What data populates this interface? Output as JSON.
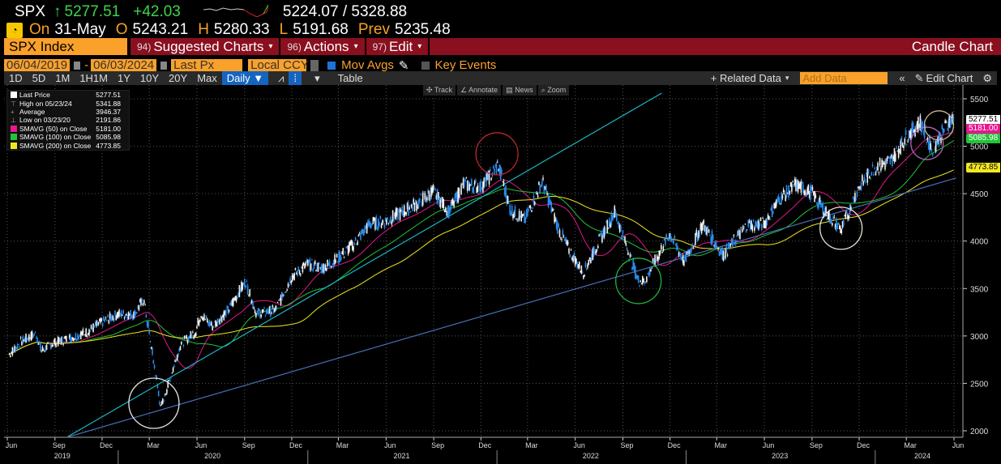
{
  "quote": {
    "ticker": "SPX",
    "arrow": "↑",
    "last": "5277.51",
    "change": "+42.03",
    "range": "5224.07 / 5328.88",
    "on_label": "On",
    "date": "31-May",
    "open_label": "O",
    "open": "5243.21",
    "high_label": "H",
    "high": "5280.33",
    "low_label": "L",
    "low": "5191.68",
    "prev_label": "Prev",
    "prev": "5235.48"
  },
  "menubar": {
    "security": "SPX Index",
    "menus": [
      {
        "num": "94)",
        "label": "Suggested Charts"
      },
      {
        "num": "96)",
        "label": "Actions"
      },
      {
        "num": "97)",
        "label": "Edit"
      }
    ],
    "chart_type": "Candle Chart"
  },
  "settings": {
    "start_date": "06/04/2019",
    "end_date": "06/03/2024",
    "field": "Last Px",
    "currency": "Local CCY",
    "mov_avgs": "Mov Avgs",
    "mov_avgs_checked": true,
    "key_events": "Key Events",
    "key_events_checked": false
  },
  "toolbar": {
    "ranges": [
      "1D",
      "5D",
      "1M",
      "1H1M",
      "1Y",
      "10Y",
      "20Y",
      "Max"
    ],
    "period": "Daily ▼",
    "table": "Table",
    "related": "+ Related Data",
    "add_data_placeholder": "Add Data",
    "edit_chart": "Edit Chart"
  },
  "chart_tools": [
    "Track",
    "Annotate",
    "News",
    "Zoom"
  ],
  "legend": [
    {
      "label": "Last Price",
      "value": "5277.51",
      "color": "#ffffff"
    },
    {
      "label": "High on 05/23/24",
      "value": "5341.88",
      "color": ""
    },
    {
      "label": "Average",
      "value": "3946.37",
      "color": ""
    },
    {
      "label": "Low on 03/23/20",
      "value": "2191.86",
      "color": ""
    },
    {
      "label": "SMAVG (50)  on Close",
      "value": "5181.00",
      "color": "#e6178f"
    },
    {
      "label": "SMAVG (100)  on Close",
      "value": "5085.98",
      "color": "#22c33a"
    },
    {
      "label": "SMAVG (200)  on Close",
      "value": "4773.85",
      "color": "#f2e81f"
    }
  ],
  "chart_data": {
    "type": "candlestick",
    "ylim": [
      1900,
      5600
    ],
    "yticks": [
      "2000",
      "2500",
      "3000",
      "3500",
      "4000",
      "4500",
      "5000",
      "5500"
    ],
    "xticks": [
      {
        "d": "2019-06-01",
        "l": "Jun"
      },
      {
        "d": "2019-09-01",
        "l": "Sep"
      },
      {
        "d": "2019-12-01",
        "l": "Dec"
      },
      {
        "d": "2020-03-01",
        "l": "Mar"
      },
      {
        "d": "2020-06-01",
        "l": "Jun"
      },
      {
        "d": "2020-09-01",
        "l": "Sep"
      },
      {
        "d": "2020-12-01",
        "l": "Dec"
      },
      {
        "d": "2021-03-01",
        "l": "Mar"
      },
      {
        "d": "2021-06-01",
        "l": "Jun"
      },
      {
        "d": "2021-09-01",
        "l": "Sep"
      },
      {
        "d": "2021-12-01",
        "l": "Dec"
      },
      {
        "d": "2022-03-01",
        "l": "Mar"
      },
      {
        "d": "2022-06-01",
        "l": "Jun"
      },
      {
        "d": "2022-09-01",
        "l": "Sep"
      },
      {
        "d": "2022-12-01",
        "l": "Dec"
      },
      {
        "d": "2023-03-01",
        "l": "Mar"
      },
      {
        "d": "2023-06-01",
        "l": "Jun"
      },
      {
        "d": "2023-09-01",
        "l": "Sep"
      },
      {
        "d": "2023-12-01",
        "l": "Dec"
      },
      {
        "d": "2024-03-01",
        "l": "Mar"
      },
      {
        "d": "2024-06-01",
        "l": "Jun"
      }
    ],
    "years": [
      {
        "d": "2019-09-15",
        "l": "2019"
      },
      {
        "d": "2020-07-01",
        "l": "2020"
      },
      {
        "d": "2021-07-01",
        "l": "2021"
      },
      {
        "d": "2022-07-01",
        "l": "2022"
      },
      {
        "d": "2023-07-01",
        "l": "2023"
      },
      {
        "d": "2024-04-01",
        "l": "2024"
      }
    ],
    "close": [
      [
        "2019-06-04",
        2803
      ],
      [
        "2019-06-28",
        2942
      ],
      [
        "2019-07-26",
        3025
      ],
      [
        "2019-08-05",
        2845
      ],
      [
        "2019-08-30",
        2926
      ],
      [
        "2019-09-30",
        2977
      ],
      [
        "2019-10-31",
        3038
      ],
      [
        "2019-11-29",
        3141
      ],
      [
        "2019-12-31",
        3231
      ],
      [
        "2020-01-31",
        3226
      ],
      [
        "2020-02-19",
        3386
      ],
      [
        "2020-03-23",
        2237
      ],
      [
        "2020-04-30",
        2912
      ],
      [
        "2020-05-29",
        3044
      ],
      [
        "2020-06-08",
        3232
      ],
      [
        "2020-06-30",
        3100
      ],
      [
        "2020-07-31",
        3271
      ],
      [
        "2020-09-02",
        3580
      ],
      [
        "2020-09-23",
        3237
      ],
      [
        "2020-10-30",
        3270
      ],
      [
        "2020-11-30",
        3622
      ],
      [
        "2020-12-31",
        3756
      ],
      [
        "2021-01-29",
        3714
      ],
      [
        "2021-02-26",
        3811
      ],
      [
        "2021-03-31",
        3973
      ],
      [
        "2021-04-30",
        4181
      ],
      [
        "2021-05-28",
        4204
      ],
      [
        "2021-06-30",
        4298
      ],
      [
        "2021-07-30",
        4395
      ],
      [
        "2021-08-31",
        4523
      ],
      [
        "2021-09-30",
        4308
      ],
      [
        "2021-10-29",
        4605
      ],
      [
        "2021-11-30",
        4567
      ],
      [
        "2022-01-03",
        4797
      ],
      [
        "2022-01-27",
        4327
      ],
      [
        "2022-02-24",
        4225
      ],
      [
        "2022-03-29",
        4631
      ],
      [
        "2022-04-29",
        4132
      ],
      [
        "2022-05-20",
        3901
      ],
      [
        "2022-06-16",
        3667
      ],
      [
        "2022-07-29",
        4130
      ],
      [
        "2022-08-16",
        4305
      ],
      [
        "2022-09-30",
        3586
      ],
      [
        "2022-10-12",
        3577
      ],
      [
        "2022-11-30",
        4080
      ],
      [
        "2022-12-28",
        3783
      ],
      [
        "2023-02-02",
        4179
      ],
      [
        "2023-03-13",
        3855
      ],
      [
        "2023-04-28",
        4169
      ],
      [
        "2023-05-31",
        4180
      ],
      [
        "2023-06-30",
        4450
      ],
      [
        "2023-07-31",
        4589
      ],
      [
        "2023-08-31",
        4508
      ],
      [
        "2023-09-29",
        4288
      ],
      [
        "2023-10-27",
        4117
      ],
      [
        "2023-11-30",
        4568
      ],
      [
        "2023-12-29",
        4770
      ],
      [
        "2024-01-31",
        4846
      ],
      [
        "2024-02-29",
        5096
      ],
      [
        "2024-03-28",
        5254
      ],
      [
        "2024-04-19",
        4967
      ],
      [
        "2024-05-23",
        5268
      ],
      [
        "2024-05-31",
        5277.51
      ]
    ],
    "moving_averages": [
      {
        "name": "SMAVG (50)",
        "days": 50,
        "color": "#e6178f",
        "last": 5181.0
      },
      {
        "name": "SMAVG (100)",
        "days": 100,
        "color": "#22c33a",
        "last": 5085.98
      },
      {
        "name": "SMAVG (200)",
        "days": 200,
        "color": "#f2e81f",
        "last": 4773.85
      }
    ],
    "price_tags": [
      {
        "v": 5277.51,
        "text": "5277.51",
        "bg": "#ffffff",
        "fg": "#000000"
      },
      {
        "v": 5181.0,
        "text": "5181.00",
        "bg": "#e6178f",
        "fg": "#ffffff"
      },
      {
        "v": 5085.98,
        "text": "5085.98",
        "bg": "#22c33a",
        "fg": "#ffffff"
      },
      {
        "v": 4773.85,
        "text": "4773.85",
        "bg": "#f2e81f",
        "fg": "#000000"
      }
    ],
    "trendlines": [
      {
        "from": [
          "2019-09-01",
          1860
        ],
        "to": [
          "2022-11-15",
          5560
        ],
        "color": "#19b5c4"
      },
      {
        "from": [
          "2019-08-10",
          1860
        ],
        "to": [
          "2024-06-05",
          4665
        ],
        "color": "#4a6fb5"
      }
    ],
    "annotations": [
      {
        "type": "circle",
        "center": [
          "2020-03-10",
          2290
        ],
        "color": "#e8e8e8"
      },
      {
        "type": "circle",
        "center": [
          "2022-01-01",
          4920
        ],
        "color": "#c0262e"
      },
      {
        "type": "circle",
        "center": [
          "2022-10-01",
          3580
        ],
        "color": "#1fb33a"
      },
      {
        "type": "circle",
        "center": [
          "2023-10-27",
          4135
        ],
        "color": "#e8e4d8"
      },
      {
        "type": "circle",
        "center": [
          "2024-04-10",
          5030
        ],
        "color": "#b06ab8"
      },
      {
        "type": "circle",
        "center": [
          "2024-05-03",
          5220
        ],
        "color": "#c9b88f"
      }
    ]
  }
}
